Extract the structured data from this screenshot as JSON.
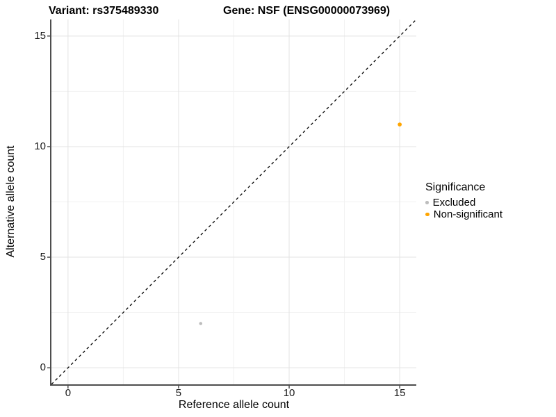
{
  "titles": {
    "left": "Variant: rs375489330",
    "right": "Gene: NSF (ENSG00000073969)"
  },
  "chart_data": {
    "type": "scatter",
    "xlabel": "Reference allele count",
    "ylabel": "Alternative allele count",
    "xlim": [
      -0.75,
      15.75
    ],
    "ylim": [
      -0.75,
      15.75
    ],
    "x_ticks": [
      0,
      5,
      10,
      15
    ],
    "y_ticks": [
      0,
      5,
      10,
      15
    ],
    "x_minor_ticks": [
      2.5,
      7.5,
      12.5
    ],
    "y_minor_ticks": [
      2.5,
      7.5,
      12.5
    ],
    "grid": "on",
    "identity_line": {
      "from": [
        -0.75,
        -0.75
      ],
      "to": [
        15.75,
        15.75
      ],
      "style": "dashed",
      "color": "#000000"
    },
    "series": [
      {
        "name": "Excluded",
        "color": "#bdbdbd",
        "dot_size": 4.6,
        "points": [
          {
            "x": 6,
            "y": 2
          }
        ]
      },
      {
        "name": "Non-significant",
        "color": "#ffa500",
        "dot_size": 5.8,
        "points": [
          {
            "x": 15,
            "y": 11
          }
        ]
      }
    ],
    "legend": {
      "title": "Significance",
      "position": "right"
    }
  },
  "colors": {
    "background": "#ffffff",
    "grid_major": "#e3e3e3",
    "grid_minor": "#f1f1f1",
    "axis_line": "#4d4d4d",
    "tick_mark": "#333333",
    "tick_text": "#1a1a1a"
  }
}
